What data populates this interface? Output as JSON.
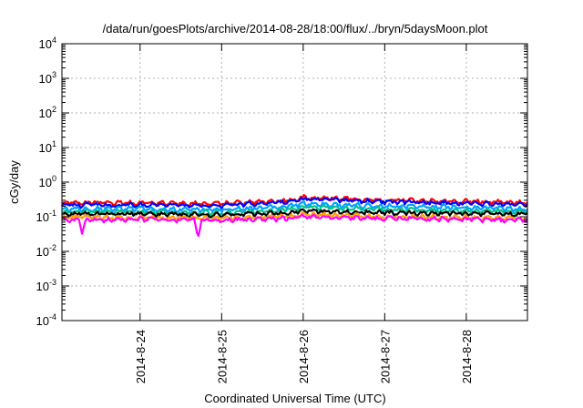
{
  "chart_data": {
    "type": "line",
    "title": "/data/run/goesPlots/archive/2014-08-28/18:00/flux/../bryn/5daysMoon.plot",
    "xlabel": "Coordinated Universal Time (UTC)",
    "ylabel": "cGy/day",
    "y_scale": "log",
    "ylim": [
      0.0001,
      10000
    ],
    "y_ticks": [
      {
        "base": "10",
        "exp": "-4",
        "value": 0.0001
      },
      {
        "base": "10",
        "exp": "-3",
        "value": 0.001
      },
      {
        "base": "10",
        "exp": "-2",
        "value": 0.01
      },
      {
        "base": "10",
        "exp": "-1",
        "value": 0.1
      },
      {
        "base": "10",
        "exp": "0",
        "value": 1
      },
      {
        "base": "10",
        "exp": "1",
        "value": 10
      },
      {
        "base": "10",
        "exp": "2",
        "value": 100
      },
      {
        "base": "10",
        "exp": "3",
        "value": 1000
      },
      {
        "base": "10",
        "exp": "4",
        "value": 10000
      }
    ],
    "xlim": [
      "2014-08-23T01:00",
      "2014-08-28T18:00"
    ],
    "x_ticks": [
      "2014-8-24",
      "2014-8-25",
      "2014-8-26",
      "2014-8-27",
      "2014-8-28"
    ],
    "grid": true,
    "legend": "none",
    "series": [
      {
        "color": "#ff0000",
        "x": [
          "2014-08-23T01:00",
          "2014-08-24T00:00",
          "2014-08-25T00:00",
          "2014-08-25T20:00",
          "2014-08-26T00:00",
          "2014-08-26T12:00",
          "2014-08-27T00:00",
          "2014-08-28T00:00",
          "2014-08-28T18:00"
        ],
        "values": [
          0.26,
          0.25,
          0.24,
          0.3,
          0.36,
          0.33,
          0.3,
          0.28,
          0.25
        ]
      },
      {
        "color": "#0000ff",
        "x": [
          "2014-08-23T01:00",
          "2014-08-24T00:00",
          "2014-08-25T00:00",
          "2014-08-25T20:00",
          "2014-08-26T00:00",
          "2014-08-26T12:00",
          "2014-08-27T00:00",
          "2014-08-28T00:00",
          "2014-08-28T18:00"
        ],
        "values": [
          0.22,
          0.22,
          0.21,
          0.27,
          0.33,
          0.3,
          0.27,
          0.25,
          0.22
        ]
      },
      {
        "color": "#00a0ff",
        "x": [
          "2014-08-23T01:00",
          "2014-08-24T00:00",
          "2014-08-25T00:00",
          "2014-08-25T20:00",
          "2014-08-26T00:00",
          "2014-08-26T12:00",
          "2014-08-27T00:00",
          "2014-08-28T00:00",
          "2014-08-28T18:00"
        ],
        "values": [
          0.17,
          0.17,
          0.16,
          0.2,
          0.24,
          0.22,
          0.2,
          0.19,
          0.17
        ]
      },
      {
        "color": "#00c090",
        "x": [
          "2014-08-23T01:00",
          "2014-08-24T00:00",
          "2014-08-25T00:00",
          "2014-08-25T20:00",
          "2014-08-26T00:00",
          "2014-08-26T12:00",
          "2014-08-27T00:00",
          "2014-08-28T00:00",
          "2014-08-28T18:00"
        ],
        "values": [
          0.14,
          0.14,
          0.13,
          0.16,
          0.19,
          0.18,
          0.16,
          0.15,
          0.14
        ]
      },
      {
        "color": "#000000",
        "x": [
          "2014-08-23T01:00",
          "2014-08-24T00:00",
          "2014-08-25T00:00",
          "2014-08-25T20:00",
          "2014-08-26T00:00",
          "2014-08-26T12:00",
          "2014-08-27T00:00",
          "2014-08-28T00:00",
          "2014-08-28T18:00"
        ],
        "values": [
          0.12,
          0.12,
          0.115,
          0.13,
          0.15,
          0.14,
          0.13,
          0.125,
          0.12
        ]
      },
      {
        "color": "#ffa000",
        "x": [
          "2014-08-23T01:00",
          "2014-08-24T00:00",
          "2014-08-25T00:00",
          "2014-08-25T20:00",
          "2014-08-26T00:00",
          "2014-08-26T12:00",
          "2014-08-27T00:00",
          "2014-08-28T00:00",
          "2014-08-28T18:00"
        ],
        "values": [
          0.095,
          0.095,
          0.09,
          0.1,
          0.115,
          0.11,
          0.1,
          0.095,
          0.09
        ]
      },
      {
        "color": "#ff00ff",
        "x": [
          "2014-08-23T01:00",
          "2014-08-23T06:00",
          "2014-08-23T07:00",
          "2014-08-23T08:00",
          "2014-08-24T00:00",
          "2014-08-24T16:00",
          "2014-08-24T17:00",
          "2014-08-24T18:00",
          "2014-08-25T00:00",
          "2014-08-25T20:00",
          "2014-08-26T00:00",
          "2014-08-26T12:00",
          "2014-08-27T00:00",
          "2014-08-28T00:00",
          "2014-08-28T18:00"
        ],
        "values": [
          0.085,
          0.08,
          0.03,
          0.08,
          0.085,
          0.08,
          0.025,
          0.08,
          0.08,
          0.09,
          0.1,
          0.095,
          0.09,
          0.085,
          0.08
        ]
      }
    ]
  }
}
